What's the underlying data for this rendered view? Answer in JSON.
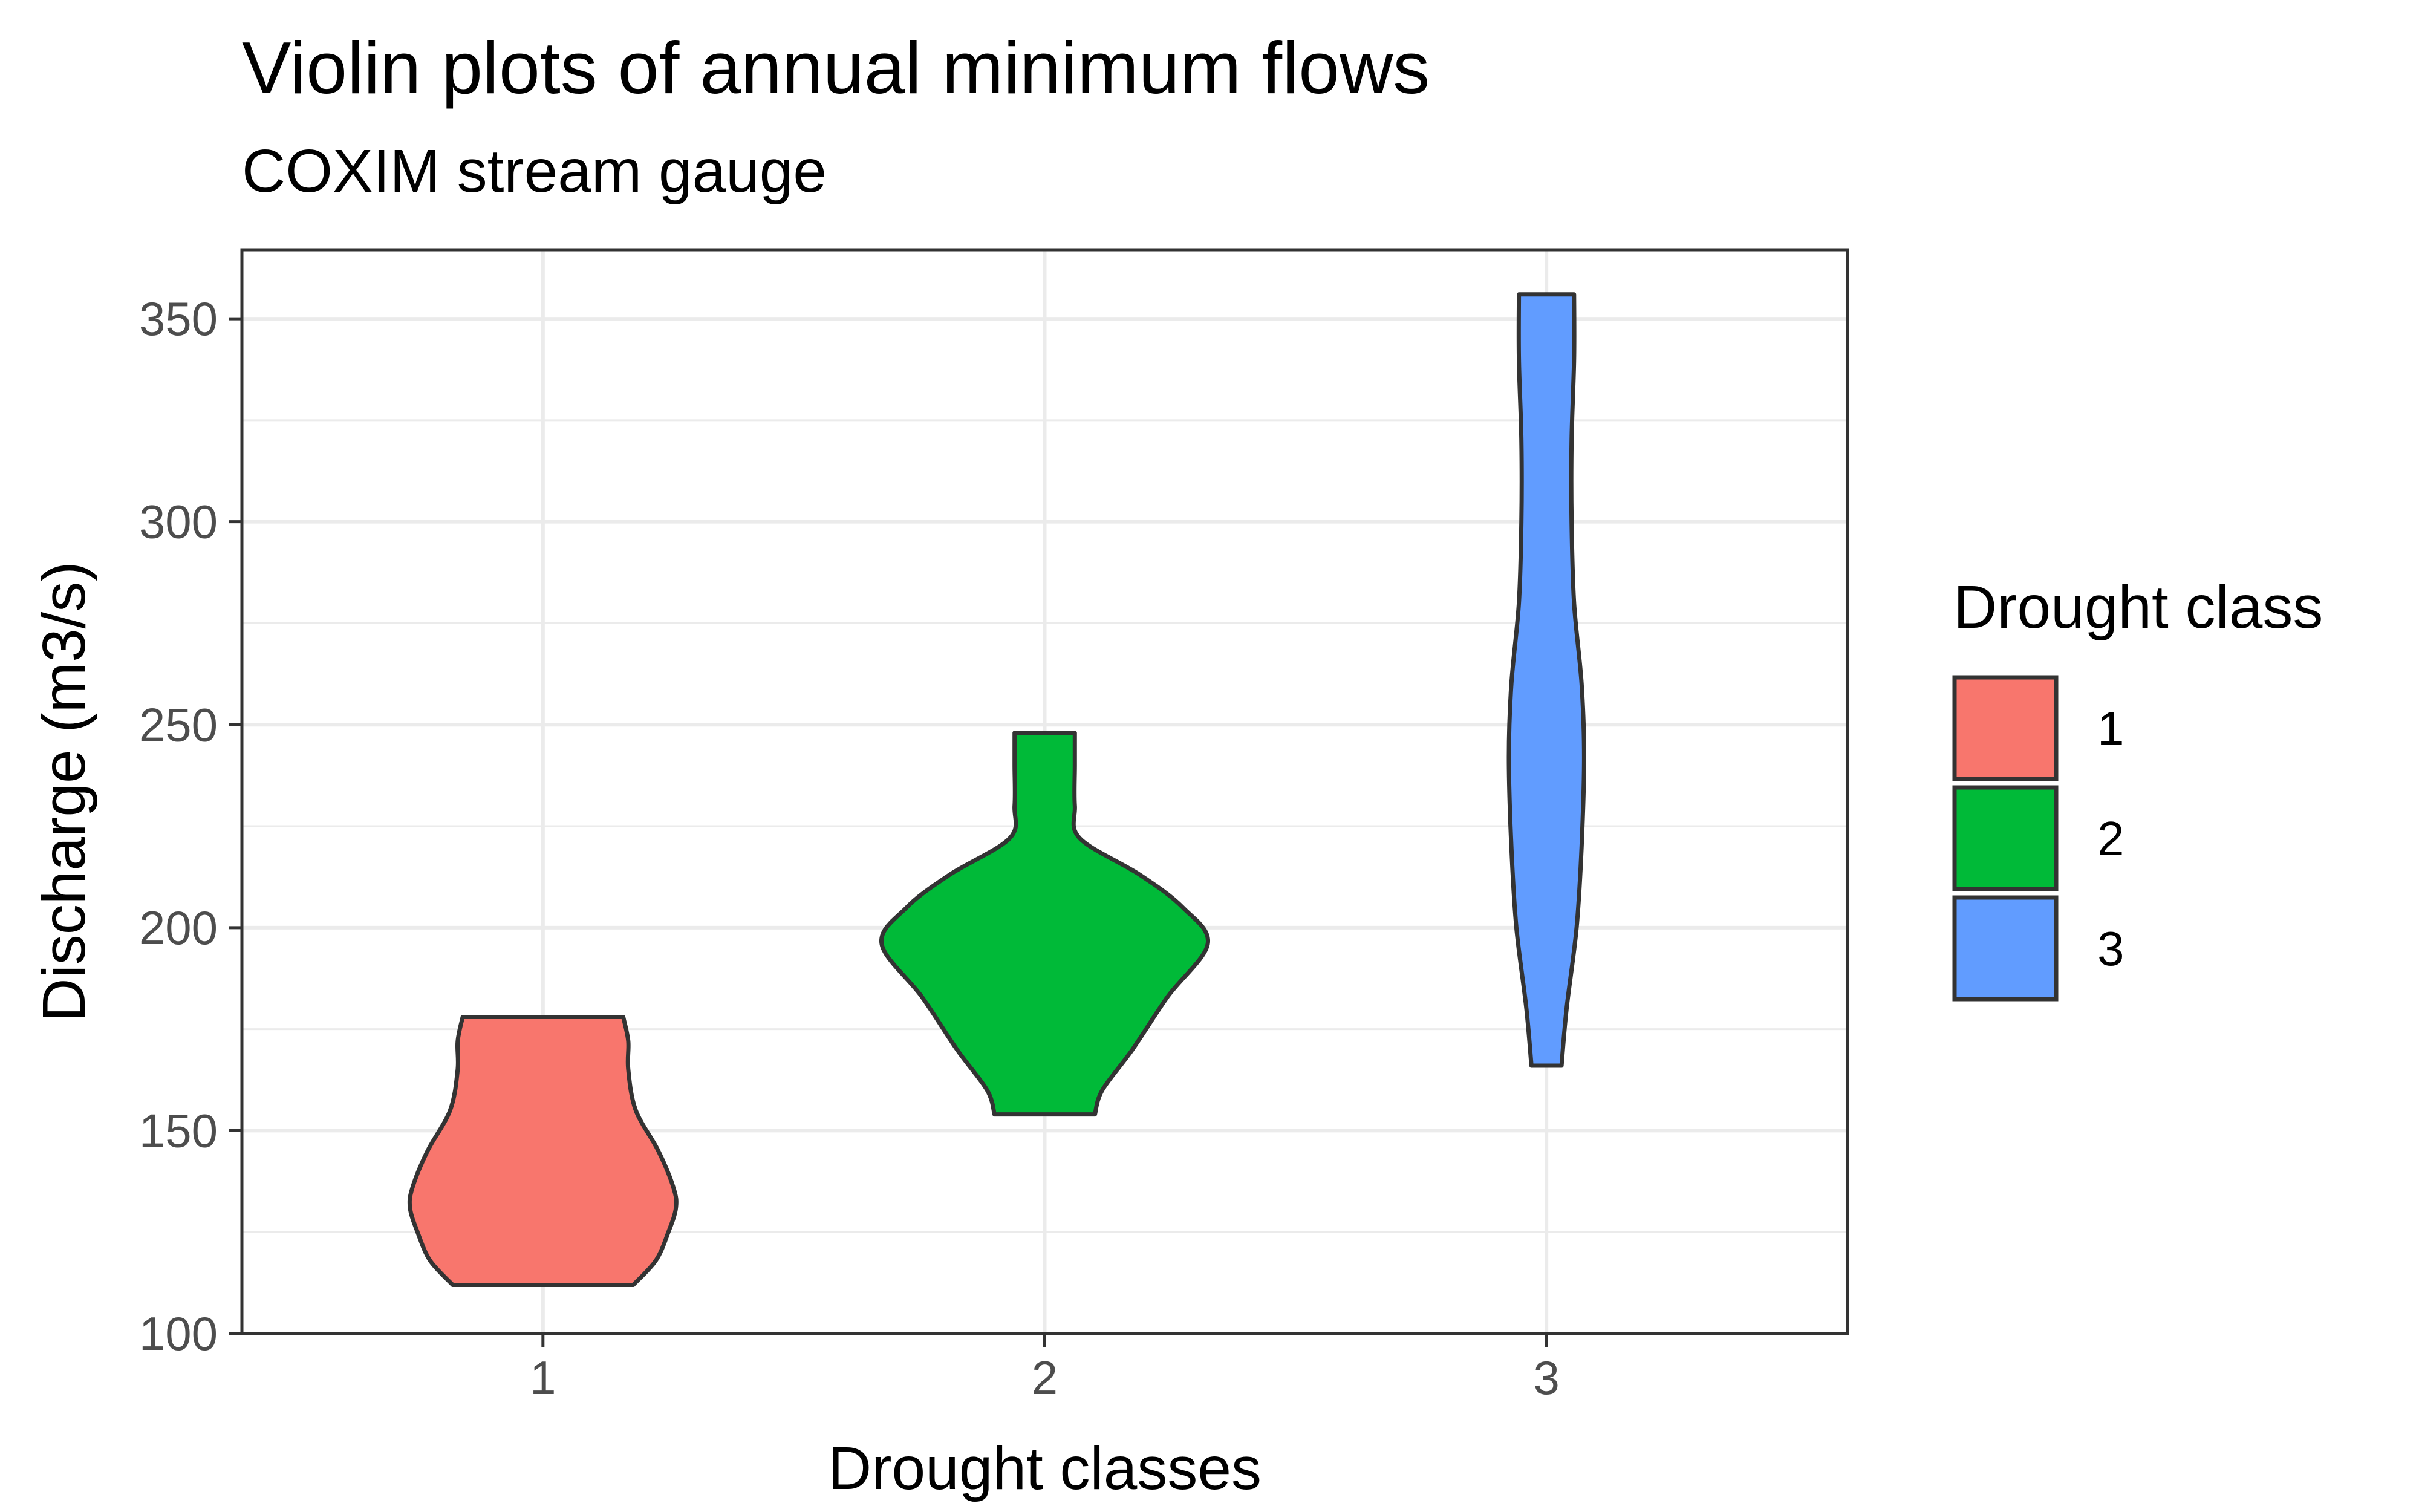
{
  "title": "Violin plots of annual minimum flows",
  "subtitle": "COXIM stream gauge",
  "chart_data": {
    "type": "violin",
    "title": "Violin plots of annual minimum flows",
    "subtitle": "COXIM stream gauge",
    "xlabel": "Drought classes",
    "ylabel": "Discharge (m3/s)",
    "categories": [
      "1",
      "2",
      "3"
    ],
    "ylim": [
      100,
      367
    ],
    "yticks": [
      100,
      150,
      200,
      250,
      300,
      350
    ],
    "grid": true,
    "legend": {
      "title": "Drought class",
      "position": "right",
      "entries": [
        {
          "label": "1",
          "color": "#F8766D"
        },
        {
          "label": "2",
          "color": "#00BA38"
        },
        {
          "label": "3",
          "color": "#619CFF"
        }
      ]
    },
    "series": [
      {
        "name": "1",
        "color": "#F8766D",
        "min": 112,
        "max": 178,
        "profile": [
          [
            112,
            0.36
          ],
          [
            118,
            0.45
          ],
          [
            125,
            0.5
          ],
          [
            131,
            0.53
          ],
          [
            136,
            0.52
          ],
          [
            145,
            0.46
          ],
          [
            155,
            0.37
          ],
          [
            165,
            0.34
          ],
          [
            172,
            0.34
          ],
          [
            178,
            0.32
          ]
        ]
      },
      {
        "name": "2",
        "color": "#00BA38",
        "min": 154,
        "max": 248,
        "profile": [
          [
            154,
            0.2
          ],
          [
            160,
            0.23
          ],
          [
            170,
            0.35
          ],
          [
            183,
            0.49
          ],
          [
            196,
            0.65
          ],
          [
            205,
            0.55
          ],
          [
            213,
            0.38
          ],
          [
            222,
            0.14
          ],
          [
            230,
            0.12
          ],
          [
            240,
            0.12
          ],
          [
            248,
            0.12
          ]
        ]
      },
      {
        "name": "3",
        "color": "#619CFF",
        "min": 166,
        "max": 356,
        "profile": [
          [
            166,
            0.06
          ],
          [
            180,
            0.08
          ],
          [
            200,
            0.12
          ],
          [
            220,
            0.14
          ],
          [
            242,
            0.15
          ],
          [
            260,
            0.14
          ],
          [
            280,
            0.11
          ],
          [
            300,
            0.1
          ],
          [
            320,
            0.1
          ],
          [
            340,
            0.11
          ],
          [
            356,
            0.11
          ]
        ]
      }
    ]
  }
}
